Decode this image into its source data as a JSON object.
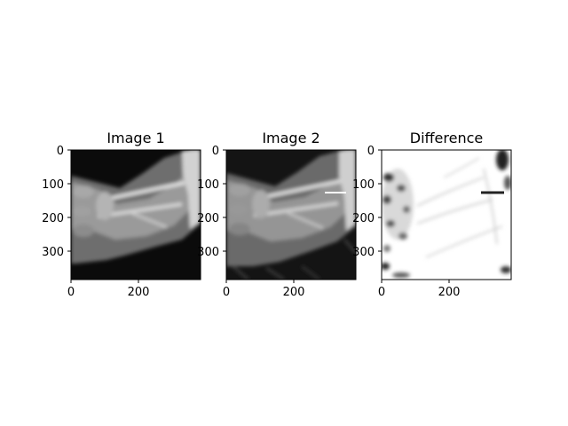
{
  "chart_data": [
    {
      "type": "image",
      "title": "Image 1",
      "colormap": "gray",
      "xlim": [
        0,
        384
      ],
      "ylim": [
        384,
        0
      ],
      "xticks": [
        0,
        200
      ],
      "yticks": [
        0,
        100,
        200,
        300
      ]
    },
    {
      "type": "image",
      "title": "Image 2",
      "colormap": "gray",
      "xlim": [
        0,
        384
      ],
      "ylim": [
        384,
        0
      ],
      "xticks": [
        0,
        200
      ],
      "yticks": [
        0,
        100,
        200,
        300
      ]
    },
    {
      "type": "image",
      "title": "Difference",
      "colormap": "gray",
      "xlim": [
        0,
        384
      ],
      "ylim": [
        384,
        0
      ],
      "xticks": [
        0,
        200
      ],
      "yticks": [
        0,
        100,
        200,
        300
      ]
    }
  ]
}
